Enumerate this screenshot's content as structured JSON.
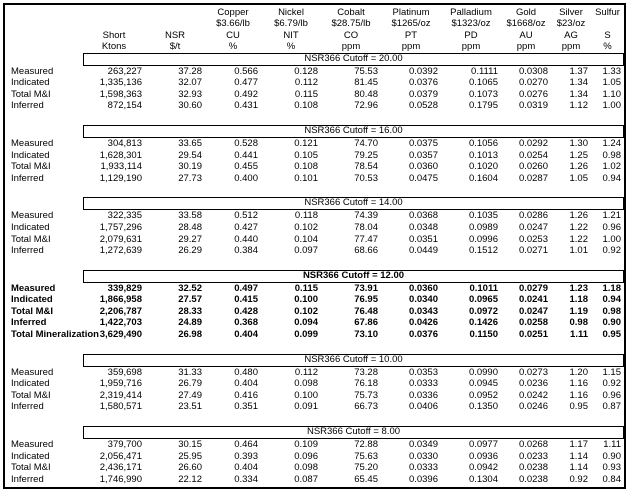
{
  "table": {
    "header": {
      "columns": [
        {
          "metal": "",
          "price": "",
          "code": "Short",
          "unit": "Ktons"
        },
        {
          "metal": "",
          "price": "",
          "code": "NSR",
          "unit": "$/t"
        },
        {
          "metal": "Copper",
          "price": "$3.66/lb",
          "code": "CU",
          "unit": "%"
        },
        {
          "metal": "Nickel",
          "price": "$6.79/lb",
          "code": "NIT",
          "unit": "%"
        },
        {
          "metal": "Cobalt",
          "price": "$28.75/lb",
          "code": "CO",
          "unit": "ppm"
        },
        {
          "metal": "Platinum",
          "price": "$1265/oz",
          "code": "PT",
          "unit": "ppm"
        },
        {
          "metal": "Palladium",
          "price": "$1323/oz",
          "code": "PD",
          "unit": "ppm"
        },
        {
          "metal": "Gold",
          "price": "$1668/oz",
          "code": "AU",
          "unit": "ppm"
        },
        {
          "metal": "Silver",
          "price": "$23/oz",
          "code": "AG",
          "unit": "ppm"
        },
        {
          "metal": "Sulfur",
          "price": "",
          "code": "S",
          "unit": "%"
        }
      ]
    },
    "sections": [
      {
        "title": "NSR366 Cutoff = 20.00",
        "bold": false,
        "rows": [
          {
            "label": "Measured",
            "values": [
              "263,227",
              "37.28",
              "0.566",
              "0.128",
              "75.53",
              "0.0392",
              "0.1111",
              "0.0308",
              "1.37",
              "1.33"
            ]
          },
          {
            "label": "Indicated",
            "values": [
              "1,335,136",
              "32.07",
              "0.477",
              "0.112",
              "81.45",
              "0.0376",
              "0.1065",
              "0.0270",
              "1.34",
              "1.05"
            ]
          },
          {
            "label": "Total M&I",
            "values": [
              "1,598,363",
              "32.93",
              "0.492",
              "0.115",
              "80.48",
              "0.0379",
              "0.1073",
              "0.0276",
              "1.34",
              "1.10"
            ]
          },
          {
            "label": "Inferred",
            "values": [
              "872,154",
              "30.60",
              "0.431",
              "0.108",
              "72.96",
              "0.0528",
              "0.1795",
              "0.0319",
              "1.12",
              "1.00"
            ]
          }
        ]
      },
      {
        "title": "NSR366 Cutoff = 16.00",
        "bold": false,
        "rows": [
          {
            "label": "Measured",
            "values": [
              "304,813",
              "33.65",
              "0.528",
              "0.121",
              "74.70",
              "0.0375",
              "0.1056",
              "0.0292",
              "1.30",
              "1.24"
            ]
          },
          {
            "label": "Indicated",
            "values": [
              "1,628,301",
              "29.54",
              "0.441",
              "0.105",
              "79.25",
              "0.0357",
              "0.1013",
              "0.0254",
              "1.25",
              "0.98"
            ]
          },
          {
            "label": "Total M&I",
            "values": [
              "1,933,114",
              "30.19",
              "0.455",
              "0.108",
              "78.54",
              "0.0360",
              "0.1020",
              "0.0260",
              "1.26",
              "1.02"
            ]
          },
          {
            "label": "Inferred",
            "values": [
              "1,129,190",
              "27.73",
              "0.400",
              "0.101",
              "70.53",
              "0.0475",
              "0.1604",
              "0.0287",
              "1.05",
              "0.94"
            ]
          }
        ]
      },
      {
        "title": "NSR366 Cutoff = 14.00",
        "bold": false,
        "rows": [
          {
            "label": "Measured",
            "values": [
              "322,335",
              "33.58",
              "0.512",
              "0.118",
              "74.39",
              "0.0368",
              "0.1035",
              "0.0286",
              "1.26",
              "1.21"
            ]
          },
          {
            "label": "Indicated",
            "values": [
              "1,757,296",
              "28.48",
              "0.427",
              "0.102",
              "78.04",
              "0.0348",
              "0.0989",
              "0.0247",
              "1.22",
              "0.96"
            ]
          },
          {
            "label": "Total M&I",
            "values": [
              "2,079,631",
              "29.27",
              "0.440",
              "0.104",
              "77.47",
              "0.0351",
              "0.0996",
              "0.0253",
              "1.22",
              "1.00"
            ]
          },
          {
            "label": "Inferred",
            "values": [
              "1,272,639",
              "26.29",
              "0.384",
              "0.097",
              "68.66",
              "0.0449",
              "0.1512",
              "0.0271",
              "1.01",
              "0.92"
            ]
          }
        ]
      },
      {
        "title": "NSR366 Cutoff = 12.00",
        "bold": true,
        "rows": [
          {
            "label": "Measured",
            "values": [
              "339,829",
              "32.52",
              "0.497",
              "0.115",
              "73.91",
              "0.0360",
              "0.1011",
              "0.0279",
              "1.23",
              "1.18"
            ]
          },
          {
            "label": "Indicated",
            "values": [
              "1,866,958",
              "27.57",
              "0.415",
              "0.100",
              "76.95",
              "0.0340",
              "0.0965",
              "0.0241",
              "1.18",
              "0.94"
            ]
          },
          {
            "label": "Total M&I",
            "values": [
              "2,206,787",
              "28.33",
              "0.428",
              "0.102",
              "76.48",
              "0.0343",
              "0.0972",
              "0.0247",
              "1.19",
              "0.98"
            ]
          },
          {
            "label": "Inferred",
            "values": [
              "1,422,703",
              "24.89",
              "0.368",
              "0.094",
              "67.86",
              "0.0426",
              "0.1426",
              "0.0258",
              "0.98",
              "0.90"
            ]
          },
          {
            "label": "Total Mineralization",
            "values": [
              "3,629,490",
              "26.98",
              "0.404",
              "0.099",
              "73.10",
              "0.0376",
              "0.1150",
              "0.0251",
              "1.11",
              "0.95"
            ]
          }
        ]
      },
      {
        "title": "NSR366 Cutoff = 10.00",
        "bold": false,
        "rows": [
          {
            "label": "Measured",
            "values": [
              "359,698",
              "31.33",
              "0.480",
              "0.112",
              "73.28",
              "0.0353",
              "0.0990",
              "0.0273",
              "1.20",
              "1.15"
            ]
          },
          {
            "label": "Indicated",
            "values": [
              "1,959,716",
              "26.79",
              "0.404",
              "0.098",
              "76.18",
              "0.0333",
              "0.0945",
              "0.0236",
              "1.16",
              "0.92"
            ]
          },
          {
            "label": "Total M&I",
            "values": [
              "2,319,414",
              "27.49",
              "0.416",
              "0.100",
              "75.73",
              "0.0336",
              "0.0952",
              "0.0242",
              "1.16",
              "0.96"
            ]
          },
          {
            "label": "Inferred",
            "values": [
              "1,580,571",
              "23.51",
              "0.351",
              "0.091",
              "66.73",
              "0.0406",
              "0.1350",
              "0.0246",
              "0.95",
              "0.87"
            ]
          }
        ]
      },
      {
        "title": "NSR366 Cutoff = 8.00",
        "bold": false,
        "rows": [
          {
            "label": "Measured",
            "values": [
              "379,700",
              "30.15",
              "0.464",
              "0.109",
              "72.88",
              "0.0349",
              "0.0977",
              "0.0268",
              "1.17",
              "1.11"
            ]
          },
          {
            "label": "Indicated",
            "values": [
              "2,056,471",
              "25.95",
              "0.393",
              "0.096",
              "75.63",
              "0.0330",
              "0.0936",
              "0.0233",
              "1.14",
              "0.90"
            ]
          },
          {
            "label": "Total M&I",
            "values": [
              "2,436,171",
              "26.60",
              "0.404",
              "0.098",
              "75.20",
              "0.0333",
              "0.0942",
              "0.0238",
              "1.14",
              "0.93"
            ]
          },
          {
            "label": "Inferred",
            "values": [
              "1,746,990",
              "22.12",
              "0.334",
              "0.087",
              "65.45",
              "0.0396",
              "0.1304",
              "0.0238",
              "0.92",
              "0.84"
            ]
          }
        ]
      }
    ]
  }
}
